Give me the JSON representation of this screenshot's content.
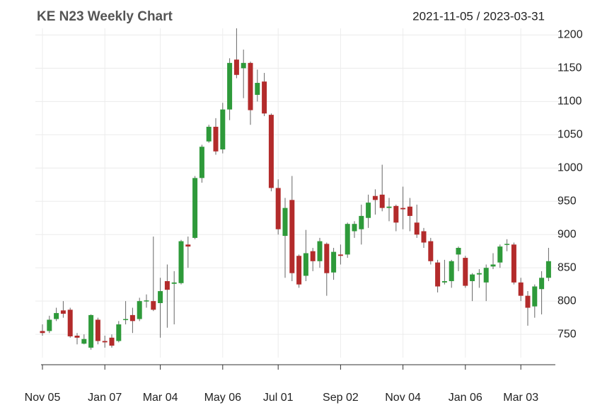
{
  "chart_data": {
    "type": "candlestick",
    "title": "KE N23 Weekly Chart",
    "subtitle": "2021-11-05 / 2023-03-31",
    "categories": [
      "Nov 05",
      null,
      null,
      null,
      null,
      null,
      null,
      null,
      null,
      "Jan 07",
      null,
      null,
      null,
      null,
      null,
      null,
      null,
      "Mar 04",
      null,
      null,
      null,
      null,
      null,
      null,
      null,
      null,
      "May 06",
      null,
      null,
      null,
      null,
      null,
      null,
      null,
      "Jul 01",
      null,
      null,
      null,
      null,
      null,
      null,
      null,
      null,
      "Sep 02",
      null,
      null,
      null,
      null,
      null,
      null,
      null,
      null,
      "Nov 04",
      null,
      null,
      null,
      null,
      null,
      null,
      null,
      null,
      "Jan 06",
      null,
      null,
      null,
      null,
      null,
      null,
      null,
      "Mar 03",
      null,
      null,
      null,
      null
    ],
    "open": [
      755,
      755,
      773,
      786,
      787,
      748,
      736,
      730,
      772,
      740,
      745,
      740,
      772,
      779,
      773,
      800,
      800,
      797,
      830,
      826,
      827,
      885,
      895,
      985,
      1040,
      1062,
      1028,
      1088,
      1163,
      1150,
      1158,
      1110,
      1130,
      1080,
      970,
      898,
      952,
      868,
      838,
      875,
      860,
      886,
      843,
      870,
      870,
      905,
      908,
      925,
      958,
      960,
      940,
      943,
      940,
      942,
      918,
      905,
      890,
      858,
      828,
      830,
      870,
      865,
      830,
      840,
      828,
      852,
      858,
      885,
      885,
      828,
      808,
      792,
      818,
      835
    ],
    "high": [
      765,
      778,
      790,
      800,
      790,
      752,
      750,
      780,
      775,
      748,
      750,
      770,
      800,
      790,
      805,
      810,
      897,
      835,
      855,
      845,
      892,
      897,
      988,
      1035,
      1065,
      1075,
      1098,
      1165,
      1210,
      1178,
      1160,
      1148,
      1143,
      1082,
      983,
      955,
      988,
      870,
      907,
      880,
      895,
      888,
      880,
      885,
      918,
      920,
      945,
      960,
      968,
      1005,
      955,
      945,
      972,
      955,
      945,
      910,
      895,
      862,
      862,
      862,
      882,
      868,
      842,
      848,
      855,
      872,
      885,
      893,
      888,
      835,
      815,
      825,
      845,
      880
    ],
    "low": [
      748,
      752,
      770,
      775,
      745,
      735,
      735,
      727,
      735,
      730,
      730,
      738,
      765,
      752,
      770,
      790,
      785,
      745,
      760,
      765,
      825,
      850,
      893,
      978,
      1038,
      1020,
      1022,
      1072,
      1135,
      1105,
      1065,
      1100,
      1078,
      965,
      900,
      835,
      830,
      820,
      830,
      845,
      850,
      808,
      832,
      855,
      865,
      895,
      885,
      910,
      930,
      935,
      920,
      905,
      908,
      905,
      895,
      880,
      855,
      813,
      825,
      820,
      845,
      820,
      800,
      820,
      800,
      848,
      850,
      875,
      825,
      800,
      763,
      775,
      780,
      830
    ],
    "close": [
      752,
      772,
      782,
      781,
      747,
      745,
      743,
      779,
      740,
      738,
      733,
      765,
      773,
      770,
      800,
      801,
      787,
      815,
      817,
      828,
      890,
      882,
      985,
      1032,
      1062,
      1025,
      1088,
      1158,
      1140,
      1158,
      1087,
      1128,
      1082,
      970,
      908,
      940,
      842,
      825,
      872,
      860,
      890,
      842,
      874,
      868,
      916,
      916,
      928,
      948,
      952,
      940,
      942,
      918,
      938,
      928,
      900,
      888,
      860,
      822,
      830,
      860,
      880,
      823,
      840,
      842,
      850,
      855,
      882,
      886,
      828,
      808,
      790,
      822,
      835,
      860
    ],
    "up_color": "#2e9a3a",
    "down_color": "#b32b2b",
    "ylim": [
      715,
      1210
    ],
    "yticks": [
      750,
      800,
      850,
      900,
      950,
      1000,
      1050,
      1100,
      1150,
      1200
    ],
    "grid": true
  }
}
